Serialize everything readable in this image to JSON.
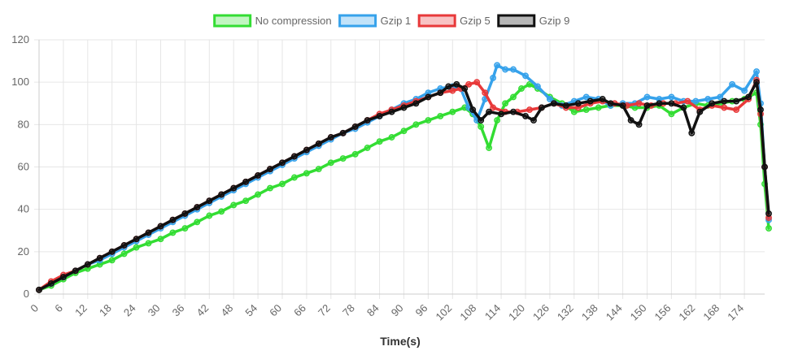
{
  "chart_data": {
    "type": "line",
    "xlabel": "Time(s)",
    "ylabel": "",
    "ylim": [
      0,
      120
    ],
    "yticks": [
      0,
      20,
      40,
      60,
      80,
      100,
      120
    ],
    "xlim": [
      0,
      179
    ],
    "xticks": [
      0,
      6,
      12,
      18,
      24,
      30,
      36,
      42,
      48,
      54,
      60,
      66,
      72,
      78,
      84,
      90,
      96,
      102,
      108,
      114,
      120,
      126,
      132,
      138,
      144,
      150,
      156,
      162,
      168,
      174
    ],
    "grid": true,
    "legend_position": "top",
    "series": [
      {
        "name": "No compression",
        "color": "#33dd33",
        "points": [
          [
            0,
            2
          ],
          [
            3,
            4
          ],
          [
            6,
            7
          ],
          [
            9,
            10
          ],
          [
            12,
            12
          ],
          [
            15,
            14
          ],
          [
            18,
            16
          ],
          [
            21,
            19
          ],
          [
            24,
            22
          ],
          [
            27,
            24
          ],
          [
            30,
            26
          ],
          [
            33,
            29
          ],
          [
            36,
            31
          ],
          [
            39,
            34
          ],
          [
            42,
            37
          ],
          [
            45,
            39
          ],
          [
            48,
            42
          ],
          [
            51,
            44
          ],
          [
            54,
            47
          ],
          [
            57,
            50
          ],
          [
            60,
            52
          ],
          [
            63,
            55
          ],
          [
            66,
            57
          ],
          [
            69,
            59
          ],
          [
            72,
            62
          ],
          [
            75,
            64
          ],
          [
            78,
            66
          ],
          [
            81,
            69
          ],
          [
            84,
            72
          ],
          [
            87,
            74
          ],
          [
            90,
            77
          ],
          [
            93,
            80
          ],
          [
            96,
            82
          ],
          [
            99,
            84
          ],
          [
            102,
            86
          ],
          [
            105,
            88
          ],
          [
            107,
            85
          ],
          [
            109,
            79
          ],
          [
            111,
            69
          ],
          [
            113,
            82
          ],
          [
            115,
            90
          ],
          [
            117,
            93
          ],
          [
            119,
            97
          ],
          [
            121,
            99
          ],
          [
            123,
            97
          ],
          [
            126,
            93
          ],
          [
            129,
            90
          ],
          [
            132,
            86
          ],
          [
            135,
            87
          ],
          [
            138,
            88
          ],
          [
            141,
            89
          ],
          [
            144,
            89
          ],
          [
            147,
            88
          ],
          [
            150,
            88
          ],
          [
            153,
            89
          ],
          [
            156,
            85
          ],
          [
            159,
            88
          ],
          [
            162,
            90
          ],
          [
            165,
            89
          ],
          [
            168,
            90
          ],
          [
            171,
            91
          ],
          [
            174,
            92
          ],
          [
            177,
            95
          ],
          [
            178,
            80
          ],
          [
            179,
            52
          ],
          [
            180,
            31
          ]
        ]
      },
      {
        "name": "Gzip 1",
        "color": "#36a2eb",
        "points": [
          [
            0,
            2
          ],
          [
            3,
            5
          ],
          [
            6,
            8
          ],
          [
            9,
            11
          ],
          [
            12,
            14
          ],
          [
            15,
            16
          ],
          [
            18,
            19
          ],
          [
            21,
            22
          ],
          [
            24,
            25
          ],
          [
            27,
            28
          ],
          [
            30,
            31
          ],
          [
            33,
            34
          ],
          [
            36,
            37
          ],
          [
            39,
            40
          ],
          [
            42,
            43
          ],
          [
            45,
            46
          ],
          [
            48,
            49
          ],
          [
            51,
            52
          ],
          [
            54,
            55
          ],
          [
            57,
            58
          ],
          [
            60,
            61
          ],
          [
            63,
            64
          ],
          [
            66,
            67
          ],
          [
            69,
            70
          ],
          [
            72,
            73
          ],
          [
            75,
            76
          ],
          [
            78,
            78
          ],
          [
            81,
            81
          ],
          [
            84,
            84
          ],
          [
            87,
            87
          ],
          [
            90,
            90
          ],
          [
            93,
            92
          ],
          [
            96,
            95
          ],
          [
            99,
            97
          ],
          [
            102,
            98
          ],
          [
            104,
            97
          ],
          [
            106,
            88
          ],
          [
            108,
            82
          ],
          [
            110,
            92
          ],
          [
            112,
            102
          ],
          [
            113,
            108
          ],
          [
            115,
            106
          ],
          [
            117,
            106
          ],
          [
            120,
            103
          ],
          [
            123,
            98
          ],
          [
            126,
            92
          ],
          [
            129,
            89
          ],
          [
            132,
            91
          ],
          [
            135,
            93
          ],
          [
            138,
            92
          ],
          [
            141,
            89
          ],
          [
            144,
            90
          ],
          [
            147,
            90
          ],
          [
            150,
            93
          ],
          [
            153,
            92
          ],
          [
            156,
            93
          ],
          [
            159,
            91
          ],
          [
            162,
            91
          ],
          [
            165,
            92
          ],
          [
            168,
            93
          ],
          [
            171,
            99
          ],
          [
            174,
            96
          ],
          [
            177,
            105
          ],
          [
            178,
            90
          ],
          [
            179,
            60
          ],
          [
            180,
            35
          ]
        ]
      },
      {
        "name": "Gzip 5",
        "color": "#e8393a",
        "points": [
          [
            0,
            2
          ],
          [
            3,
            6
          ],
          [
            6,
            9
          ],
          [
            9,
            11
          ],
          [
            12,
            14
          ],
          [
            15,
            17
          ],
          [
            18,
            20
          ],
          [
            21,
            23
          ],
          [
            24,
            26
          ],
          [
            27,
            29
          ],
          [
            30,
            32
          ],
          [
            33,
            35
          ],
          [
            36,
            38
          ],
          [
            39,
            41
          ],
          [
            42,
            44
          ],
          [
            45,
            47
          ],
          [
            48,
            50
          ],
          [
            51,
            53
          ],
          [
            54,
            56
          ],
          [
            57,
            59
          ],
          [
            60,
            62
          ],
          [
            63,
            65
          ],
          [
            66,
            68
          ],
          [
            69,
            71
          ],
          [
            72,
            74
          ],
          [
            75,
            76
          ],
          [
            78,
            79
          ],
          [
            81,
            82
          ],
          [
            84,
            85
          ],
          [
            87,
            87
          ],
          [
            90,
            89
          ],
          [
            93,
            91
          ],
          [
            96,
            93
          ],
          [
            99,
            95
          ],
          [
            102,
            96
          ],
          [
            104,
            97
          ],
          [
            106,
            99
          ],
          [
            108,
            100
          ],
          [
            110,
            95
          ],
          [
            112,
            88
          ],
          [
            115,
            86
          ],
          [
            118,
            86
          ],
          [
            121,
            87
          ],
          [
            124,
            88
          ],
          [
            127,
            90
          ],
          [
            130,
            88
          ],
          [
            133,
            88
          ],
          [
            136,
            90
          ],
          [
            139,
            91
          ],
          [
            142,
            90
          ],
          [
            145,
            89
          ],
          [
            148,
            90
          ],
          [
            151,
            89
          ],
          [
            154,
            90
          ],
          [
            157,
            90
          ],
          [
            160,
            91
          ],
          [
            163,
            87
          ],
          [
            166,
            89
          ],
          [
            169,
            88
          ],
          [
            172,
            87
          ],
          [
            175,
            92
          ],
          [
            177,
            101
          ],
          [
            178,
            85
          ],
          [
            179,
            60
          ],
          [
            180,
            36
          ]
        ]
      },
      {
        "name": "Gzip 9",
        "color": "#111111",
        "points": [
          [
            0,
            2
          ],
          [
            3,
            5
          ],
          [
            6,
            8
          ],
          [
            9,
            11
          ],
          [
            12,
            14
          ],
          [
            15,
            17
          ],
          [
            18,
            20
          ],
          [
            21,
            23
          ],
          [
            24,
            26
          ],
          [
            27,
            29
          ],
          [
            30,
            32
          ],
          [
            33,
            35
          ],
          [
            36,
            38
          ],
          [
            39,
            41
          ],
          [
            42,
            44
          ],
          [
            45,
            47
          ],
          [
            48,
            50
          ],
          [
            51,
            53
          ],
          [
            54,
            56
          ],
          [
            57,
            59
          ],
          [
            60,
            62
          ],
          [
            63,
            65
          ],
          [
            66,
            68
          ],
          [
            69,
            71
          ],
          [
            72,
            74
          ],
          [
            75,
            76
          ],
          [
            78,
            79
          ],
          [
            81,
            82
          ],
          [
            84,
            84
          ],
          [
            87,
            86
          ],
          [
            90,
            88
          ],
          [
            93,
            90
          ],
          [
            96,
            93
          ],
          [
            99,
            95
          ],
          [
            101,
            98
          ],
          [
            103,
            99
          ],
          [
            105,
            97
          ],
          [
            107,
            87
          ],
          [
            109,
            82
          ],
          [
            111,
            86
          ],
          [
            114,
            85
          ],
          [
            117,
            86
          ],
          [
            120,
            84
          ],
          [
            122,
            82
          ],
          [
            124,
            88
          ],
          [
            127,
            90
          ],
          [
            130,
            89
          ],
          [
            133,
            90
          ],
          [
            136,
            91
          ],
          [
            139,
            92
          ],
          [
            141,
            90
          ],
          [
            144,
            89
          ],
          [
            146,
            82
          ],
          [
            148,
            80
          ],
          [
            150,
            89
          ],
          [
            153,
            90
          ],
          [
            156,
            90
          ],
          [
            159,
            88
          ],
          [
            161,
            76
          ],
          [
            163,
            86
          ],
          [
            166,
            90
          ],
          [
            169,
            91
          ],
          [
            172,
            91
          ],
          [
            175,
            93
          ],
          [
            177,
            100
          ],
          [
            178,
            87
          ],
          [
            179,
            60
          ],
          [
            180,
            38
          ]
        ]
      }
    ]
  }
}
